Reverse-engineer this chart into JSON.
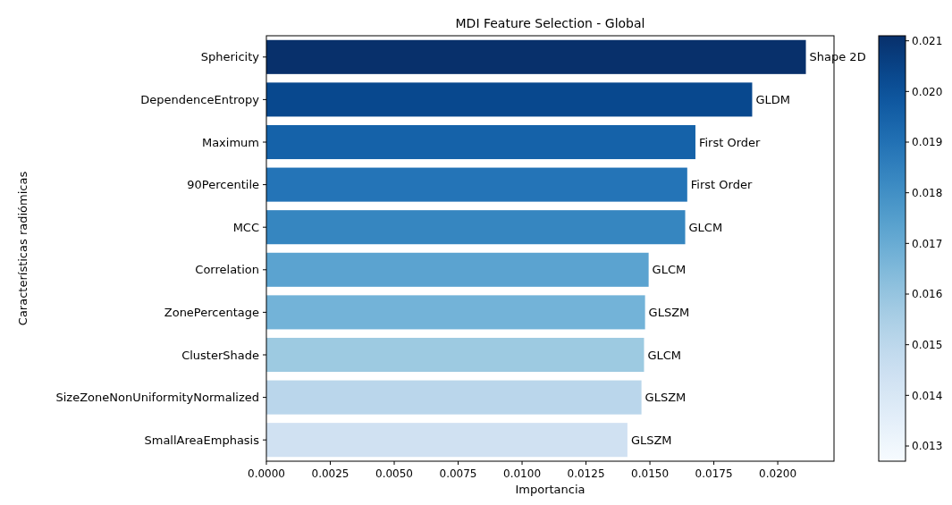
{
  "chart_data": {
    "type": "bar",
    "orientation": "horizontal",
    "title": "MDI Feature Selection - Global",
    "xlabel": "Importancia",
    "ylabel": "Características radiómicas",
    "categories": [
      "Sphericity",
      "DependenceEntropy",
      "Maximum",
      "90Percentile",
      "MCC",
      "Correlation",
      "ZonePercentage",
      "ClusterShade",
      "SizeZoneNonUniformityNormalized",
      "SmallAreaEmphasis"
    ],
    "values": [
      0.0211,
      0.019,
      0.01678,
      0.01646,
      0.01638,
      0.01495,
      0.01481,
      0.01477,
      0.01467,
      0.01412
    ],
    "colors": [
      "#08306b",
      "#08488e",
      "#1562a9",
      "#2474b7",
      "#3686c0",
      "#5ba3d0",
      "#73b3d8",
      "#9dcae1",
      "#bad6eb",
      "#d0e1f2"
    ],
    "value_labels": [
      "Shape 2D",
      "GLDM",
      "First Order",
      "First Order",
      "GLCM",
      "GLCM",
      "GLSZM",
      "GLCM",
      "GLSZM",
      "GLSZM"
    ],
    "xlim": [
      0,
      0.0222
    ],
    "xticks": [
      {
        "value": 0,
        "label": "0.0000"
      },
      {
        "value": 0.0025,
        "label": "0.0025"
      },
      {
        "value": 0.005,
        "label": "0.0050"
      },
      {
        "value": 0.0075,
        "label": "0.0075"
      },
      {
        "value": 0.01,
        "label": "0.0100"
      },
      {
        "value": 0.0125,
        "label": "0.0125"
      },
      {
        "value": 0.015,
        "label": "0.0150"
      },
      {
        "value": 0.0175,
        "label": "0.0175"
      },
      {
        "value": 0.02,
        "label": "0.0200"
      }
    ],
    "clim": [
      0.0127,
      0.0211
    ],
    "cticks": [
      0.013,
      0.014,
      0.015,
      0.016,
      0.017,
      0.018,
      0.019,
      {
        "value": 0.02,
        "label": "0.020"
      },
      0.021
    ],
    "grid": false
  }
}
